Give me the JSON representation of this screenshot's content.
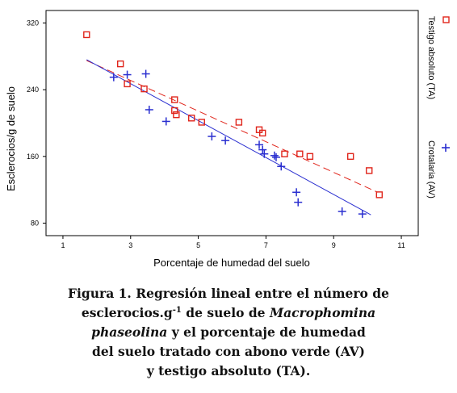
{
  "chart_data": {
    "type": "scatter",
    "title": "",
    "xlabel": "Porcentaje de humedad del suelo",
    "ylabel": "Esclerocios/g de suelo",
    "xlim": [
      0.5,
      11.5
    ],
    "ylim": [
      65,
      335
    ],
    "xticks": [
      1,
      3,
      5,
      7,
      9,
      11
    ],
    "yticks": [
      80,
      160,
      240,
      320
    ],
    "grid": false,
    "legend_position": "right",
    "series": [
      {
        "name": "Testigo absoluto (TA)",
        "marker": "square",
        "color": "#e0251b",
        "line_style": "dashed",
        "regression": {
          "x": [
            1.7,
            10.3
          ],
          "y": [
            275,
            117
          ]
        },
        "points": [
          {
            "x": 1.7,
            "y": 306
          },
          {
            "x": 2.7,
            "y": 271
          },
          {
            "x": 2.9,
            "y": 247
          },
          {
            "x": 3.4,
            "y": 241
          },
          {
            "x": 4.3,
            "y": 228
          },
          {
            "x": 4.3,
            "y": 215
          },
          {
            "x": 4.35,
            "y": 210
          },
          {
            "x": 4.8,
            "y": 206
          },
          {
            "x": 5.1,
            "y": 201
          },
          {
            "x": 6.2,
            "y": 201
          },
          {
            "x": 6.8,
            "y": 192
          },
          {
            "x": 6.9,
            "y": 188
          },
          {
            "x": 7.55,
            "y": 163
          },
          {
            "x": 8.0,
            "y": 163
          },
          {
            "x": 8.3,
            "y": 160
          },
          {
            "x": 9.5,
            "y": 160
          },
          {
            "x": 10.05,
            "y": 143
          },
          {
            "x": 10.35,
            "y": 114
          }
        ]
      },
      {
        "name": "Crotalaria (AV)",
        "marker": "plus",
        "color": "#2a2fd0",
        "line_style": "solid",
        "regression": {
          "x": [
            1.7,
            10.1
          ],
          "y": [
            276,
            90
          ]
        },
        "points": [
          {
            "x": 2.5,
            "y": 255
          },
          {
            "x": 2.9,
            "y": 258
          },
          {
            "x": 3.45,
            "y": 259
          },
          {
            "x": 3.55,
            "y": 216
          },
          {
            "x": 4.05,
            "y": 202
          },
          {
            "x": 5.4,
            "y": 184
          },
          {
            "x": 5.8,
            "y": 179
          },
          {
            "x": 6.8,
            "y": 174
          },
          {
            "x": 6.9,
            "y": 168
          },
          {
            "x": 6.95,
            "y": 163
          },
          {
            "x": 7.25,
            "y": 161
          },
          {
            "x": 7.3,
            "y": 159
          },
          {
            "x": 7.45,
            "y": 148
          },
          {
            "x": 7.9,
            "y": 117
          },
          {
            "x": 7.95,
            "y": 105
          },
          {
            "x": 9.25,
            "y": 94
          },
          {
            "x": 9.85,
            "y": 91
          }
        ]
      }
    ]
  },
  "caption": {
    "line1": "Figura 1. Regresión lineal entre el número de",
    "line2_a": "esclerocios.g",
    "line2_sup": "-1",
    "line2_b": " de suelo de ",
    "line2_it": "Macrophomina",
    "line3_it": "phaseolina",
    "line3_b": " y el porcentaje de humedad",
    "line4": "del suelo tratado con abono verde (AV)",
    "line5": "y testigo absoluto (TA)."
  }
}
